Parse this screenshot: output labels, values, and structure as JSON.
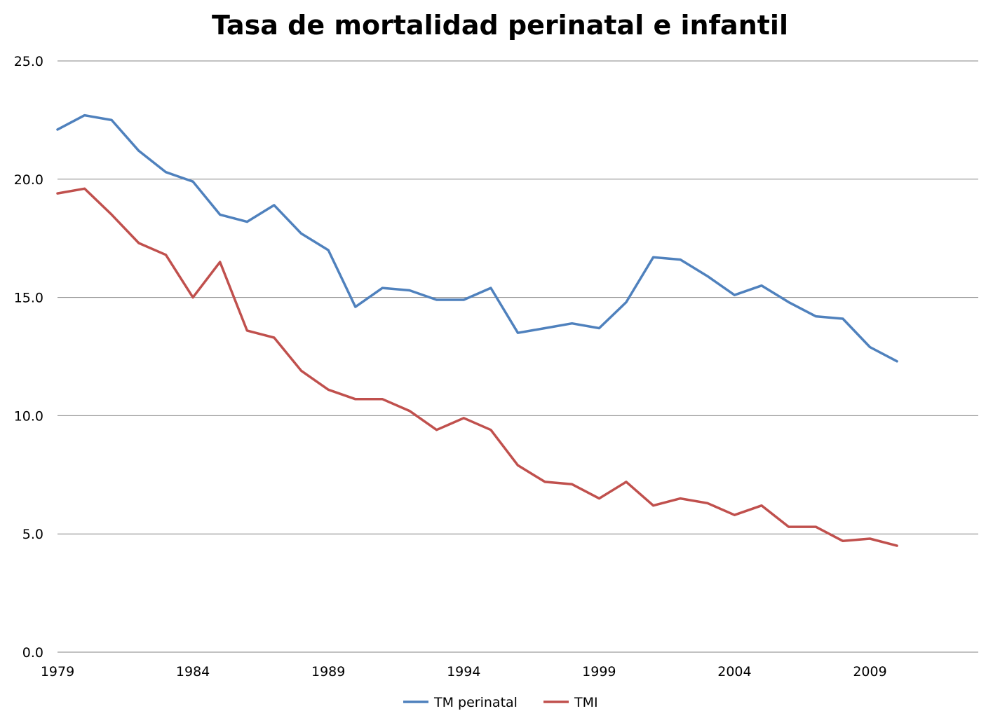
{
  "chart_data": {
    "type": "line",
    "title": "Tasa de mortalidad perinatal e infantil",
    "xlabel": "",
    "ylabel": "",
    "x": [
      1979,
      1980,
      1981,
      1982,
      1983,
      1984,
      1985,
      1986,
      1987,
      1988,
      1989,
      1990,
      1991,
      1992,
      1993,
      1994,
      1995,
      1996,
      1997,
      1998,
      1999,
      2000,
      2001,
      2002,
      2003,
      2004,
      2005,
      2006,
      2007,
      2008,
      2009,
      2010
    ],
    "xlim": [
      1979,
      2013
    ],
    "ylim": [
      0,
      25
    ],
    "x_ticks": [
      1979,
      1984,
      1989,
      1994,
      1999,
      2004,
      2009
    ],
    "y_ticks": [
      0,
      5,
      10,
      15,
      20,
      25
    ],
    "y_tick_labels": [
      "0.0",
      "5.0",
      "10.0",
      "15.0",
      "20.0",
      "25.0"
    ],
    "grid": "horizontal",
    "legend_position": "bottom",
    "series": [
      {
        "name": "TM perinatal",
        "color": "#4F81BD",
        "values": [
          22.1,
          22.7,
          22.5,
          21.2,
          20.3,
          19.9,
          18.5,
          18.2,
          18.9,
          17.7,
          17.0,
          14.6,
          15.4,
          15.3,
          14.9,
          14.9,
          15.4,
          13.5,
          13.7,
          13.9,
          13.7,
          14.8,
          16.7,
          16.6,
          15.9,
          15.1,
          15.5,
          14.8,
          14.2,
          14.1,
          12.9,
          12.3
        ]
      },
      {
        "name": "TMI",
        "color": "#C0504D",
        "values": [
          19.4,
          19.6,
          18.5,
          17.3,
          16.8,
          15.0,
          16.5,
          13.6,
          13.3,
          11.9,
          11.1,
          10.7,
          10.7,
          10.2,
          9.4,
          9.9,
          9.4,
          7.9,
          7.2,
          7.1,
          6.5,
          7.2,
          6.2,
          6.5,
          6.3,
          5.8,
          6.2,
          5.3,
          5.3,
          4.7,
          4.8,
          4.5
        ]
      }
    ]
  }
}
